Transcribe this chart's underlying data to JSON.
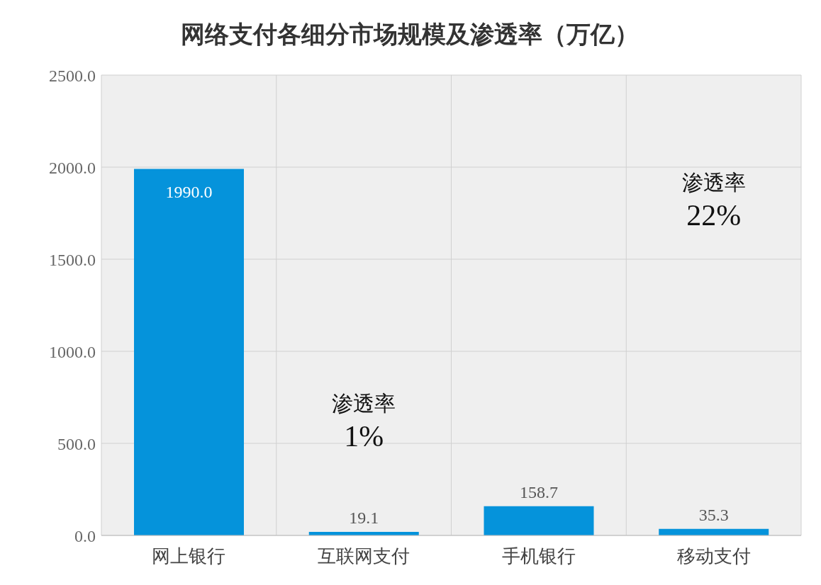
{
  "chart_data": {
    "type": "bar",
    "title": "网络支付各细分市场规模及渗透率（万亿）",
    "categories": [
      "网上银行",
      "互联网支付",
      "手机银行",
      "移动支付"
    ],
    "values": [
      1990.0,
      19.1,
      158.7,
      35.3
    ],
    "value_labels": [
      "1990.0",
      "19.1",
      "158.7",
      "35.3"
    ],
    "color": "#0593db",
    "ylim": [
      0,
      2500
    ],
    "yticks": [
      {
        "value": 0,
        "label": "0.0"
      },
      {
        "value": 500,
        "label": "500.0"
      },
      {
        "value": 1000,
        "label": "1000.0"
      },
      {
        "value": 1500,
        "label": "1500.0"
      },
      {
        "value": 2000,
        "label": "2000.0"
      },
      {
        "value": 2500,
        "label": "2500.0"
      }
    ],
    "grid": true,
    "annotations": [
      "渗透率\n1%",
      "渗透率\n22%"
    ]
  }
}
